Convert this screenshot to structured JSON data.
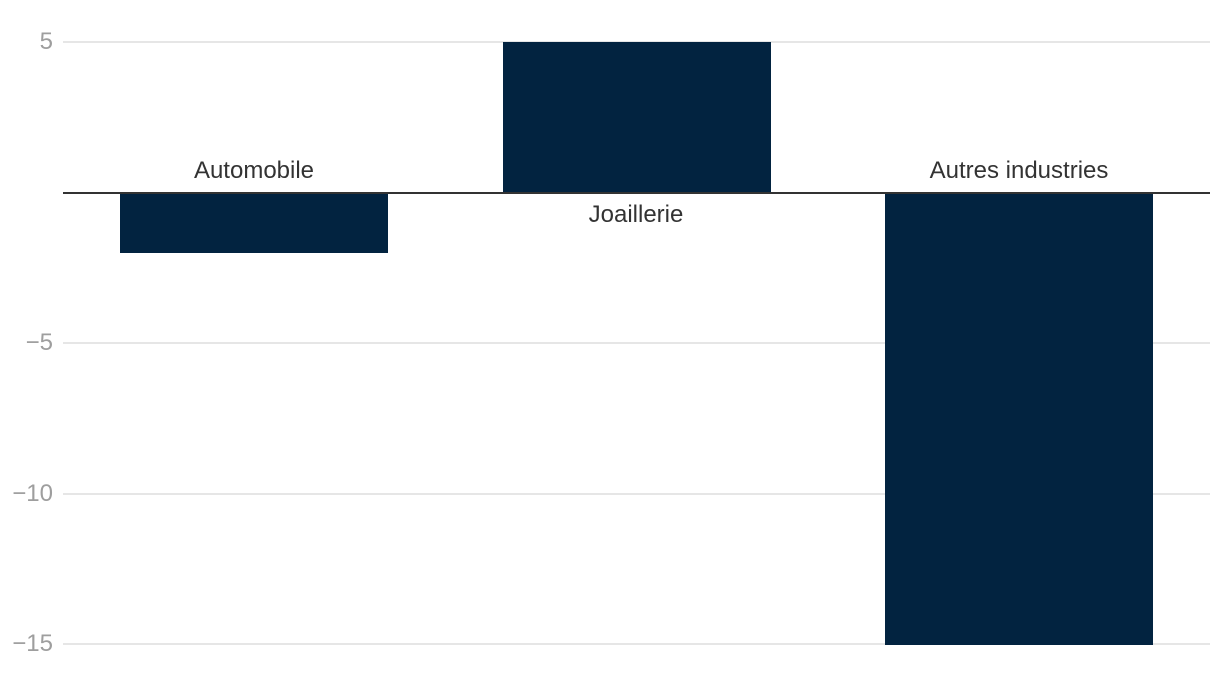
{
  "chart_data": {
    "type": "bar",
    "title": "",
    "xlabel": "",
    "ylabel": "",
    "categories": [
      "Automobile",
      "Joaillerie",
      "Autres industries"
    ],
    "values": [
      -2,
      5,
      -15
    ],
    "ylim": [
      -15,
      5
    ],
    "yticks_labeled": [
      5,
      -5,
      -10,
      -15
    ],
    "baseline": 0,
    "grid": "horizontal",
    "legend_position": "none",
    "colors": {
      "bar": "#022340",
      "gridline": "#e6e6e6",
      "zero_line": "#333333",
      "tick_label": "#9e9e9e",
      "category_label": "#333333",
      "background": "#ffffff"
    }
  }
}
